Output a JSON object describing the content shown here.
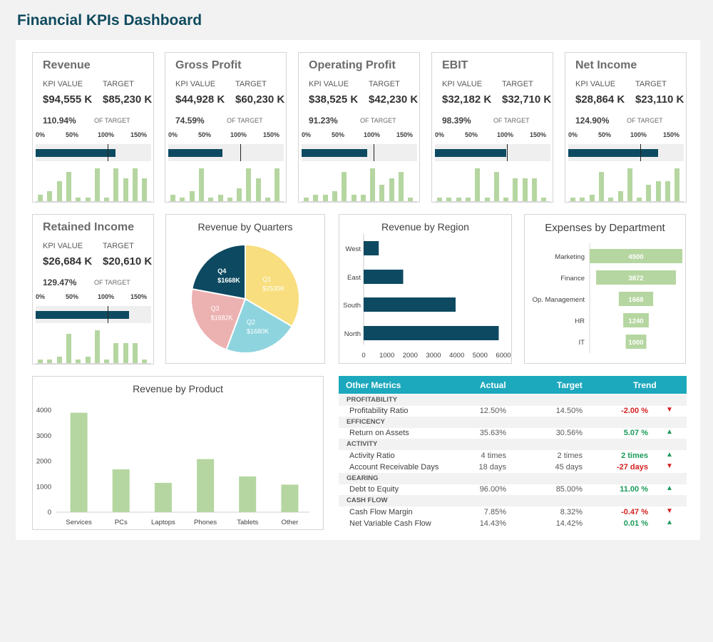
{
  "dashboard": {
    "title": "Financial KPIs Dashboard",
    "colors": {
      "accent": "#0d4a61",
      "bar_green": "#b5d6a0",
      "header_teal": "#1ca8bd",
      "up": "#1a9a5a",
      "down": "#d42020"
    }
  },
  "kpi_common": {
    "kpi_value_label": "KPI VALUE",
    "target_label": "TARGET",
    "of_target_label": "OF TARGET",
    "scale": [
      "0%",
      "50%",
      "100%",
      "150%"
    ]
  },
  "kpis": [
    {
      "title": "Revenue",
      "value": "$94,555 K",
      "target": "$85,230 K",
      "pct": "110.94%",
      "ratio": 1.1094,
      "mini": [
        2,
        3,
        6,
        9,
        1,
        1,
        10,
        1,
        10,
        7,
        10,
        7
      ]
    },
    {
      "title": "Gross Profit",
      "value": "$44,928 K",
      "target": "$60,230 K",
      "pct": "74.59%",
      "ratio": 0.7459,
      "mini": [
        2,
        1,
        3,
        10,
        1,
        2,
        1,
        4,
        10,
        7,
        1,
        10
      ]
    },
    {
      "title": "Operating Profit",
      "value": "$38,525 K",
      "target": "$42,230 K",
      "pct": "91.23%",
      "ratio": 0.9123,
      "mini": [
        1,
        2,
        2,
        3,
        9,
        2,
        2,
        10,
        5,
        7,
        9,
        1
      ]
    },
    {
      "title": "EBIT",
      "value": "$32,182 K",
      "target": "$32,710 K",
      "pct": "98.39%",
      "ratio": 0.9839,
      "mini": [
        1,
        1,
        1,
        1,
        10,
        1,
        9,
        1,
        7,
        7,
        7,
        1
      ]
    },
    {
      "title": "Net Income",
      "value": "$28,864 K",
      "target": "$23,110 K",
      "pct": "124.90%",
      "ratio": 1.249,
      "mini": [
        1,
        1,
        2,
        9,
        1,
        3,
        10,
        1,
        5,
        6,
        6,
        10
      ]
    },
    {
      "title": "Retained Income",
      "value": "$26,684 K",
      "target": "$20,610 K",
      "pct": "129.47%",
      "ratio": 1.2947,
      "mini": [
        1,
        1,
        2,
        9,
        1,
        2,
        10,
        1,
        6,
        6,
        6,
        1
      ]
    }
  ],
  "other_metrics": {
    "headers": [
      "Other Metrics",
      "Actual",
      "Target",
      "Trend"
    ],
    "rows": [
      {
        "type": "category",
        "label": "PROFITABILITY"
      },
      {
        "type": "item",
        "label": "Profitability Ratio",
        "actual": "12.50%",
        "target": "14.50%",
        "trend": "-2.00 %",
        "dir": "down"
      },
      {
        "type": "category",
        "label": "EFFICENCY"
      },
      {
        "type": "item",
        "label": "Return on Assets",
        "actual": "35.63%",
        "target": "30.56%",
        "trend": "5.07 %",
        "dir": "up"
      },
      {
        "type": "category",
        "label": "ACTIVITY"
      },
      {
        "type": "item",
        "label": "Activity Ratio",
        "actual": "4 times",
        "target": "2 times",
        "trend": "2 times",
        "dir": "up"
      },
      {
        "type": "item",
        "label": "Account Receivable Days",
        "actual": "18 days",
        "target": "45 days",
        "trend": "-27 days",
        "dir": "down"
      },
      {
        "type": "category",
        "label": "GEARING"
      },
      {
        "type": "item",
        "label": "Debt to Equity",
        "actual": "96.00%",
        "target": "85.00%",
        "trend": "11.00 %",
        "dir": "up"
      },
      {
        "type": "category",
        "label": "CASH FLOW"
      },
      {
        "type": "item",
        "label": "Cash Flow Margin",
        "actual": "7.85%",
        "target": "8.32%",
        "trend": "-0.47 %",
        "dir": "down"
      },
      {
        "type": "item",
        "label": "Net Variable Cash Flow",
        "actual": "14.43%",
        "target": "14.42%",
        "trend": "0.01 %",
        "dir": "up"
      }
    ]
  },
  "chart_data": [
    {
      "type": "pie",
      "title": "Revenue by Quarters",
      "slices": [
        {
          "label": "Q1",
          "value": 2530,
          "value_label": "$2530K",
          "color": "#f8de7e"
        },
        {
          "label": "Q2",
          "value": 1680,
          "value_label": "$1680K",
          "color": "#8ed4df"
        },
        {
          "label": "Q3",
          "value": 1682,
          "value_label": "$1682K",
          "color": "#ecb1b1"
        },
        {
          "label": "Q4",
          "value": 1668,
          "value_label": "$1668K",
          "color": "#0d4a61"
        }
      ]
    },
    {
      "type": "bar",
      "orientation": "horizontal",
      "title": "Revenue by Region",
      "categories": [
        "West",
        "East",
        "South",
        "North"
      ],
      "values": [
        650,
        1700,
        3950,
        5800
      ],
      "xlim": [
        0,
        6000
      ],
      "xticks": [
        0,
        1000,
        2000,
        3000,
        4000,
        5000,
        6000
      ],
      "color": "#0d4a61"
    },
    {
      "type": "bar",
      "orientation": "horizontal",
      "title": "Expenses by Department",
      "categories": [
        "Marketing",
        "Finance",
        "Op. Management",
        "HR",
        "IT"
      ],
      "values": [
        4500,
        3872,
        1668,
        1240,
        1000
      ],
      "value_labels": [
        "4500",
        "3872",
        "1668",
        "1240",
        "1000"
      ],
      "color": "#b5d6a0"
    },
    {
      "type": "bar",
      "title": "Revenue by Product",
      "categories": [
        "Services",
        "PCs",
        "Laptops",
        "Phones",
        "Tablets",
        "Other"
      ],
      "values": [
        3900,
        1680,
        1150,
        2080,
        1400,
        1080
      ],
      "ylim": [
        0,
        4000
      ],
      "yticks": [
        0,
        1000,
        2000,
        3000,
        4000
      ],
      "color": "#b5d6a0"
    }
  ]
}
